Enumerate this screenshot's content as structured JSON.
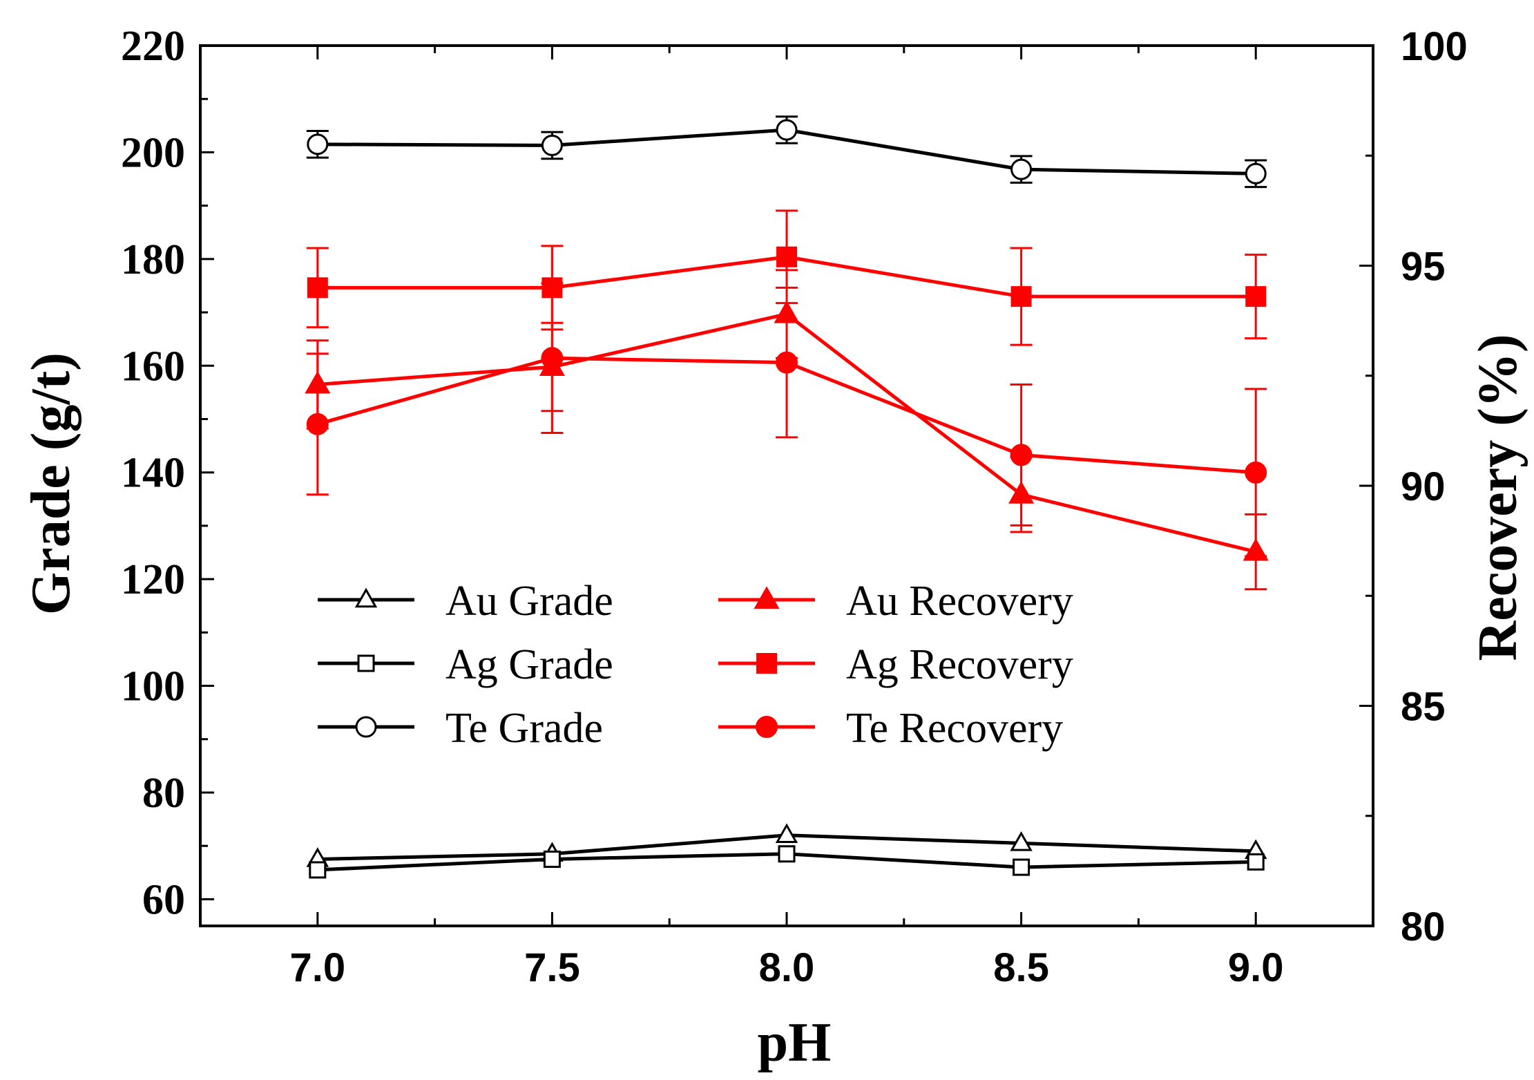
{
  "chart_data": {
    "type": "line",
    "x": [
      7.0,
      7.5,
      8.0,
      8.5,
      9.0
    ],
    "x_tick_labels": [
      "7.0",
      "7.5",
      "8.0",
      "8.5",
      "9.0"
    ],
    "xlabel": "pH",
    "xlim": [
      6.75,
      9.25
    ],
    "ylabel_left": "Grade (g/t)",
    "ylim_left": [
      55,
      220
    ],
    "y_ticks_left": [
      "60",
      "80",
      "100",
      "120",
      "140",
      "160",
      "180",
      "200",
      "220"
    ],
    "ylabel_right": "Recovery (%)",
    "ylim_right": [
      80,
      100
    ],
    "y_ticks_right": [
      "80",
      "85",
      "90",
      "95",
      "100"
    ],
    "series": [
      {
        "name": "Au Grade",
        "axis": "left",
        "color": "#000000",
        "marker": "triangle-open",
        "values": [
          67.5,
          68.5,
          72,
          70.5,
          69
        ]
      },
      {
        "name": "Ag Grade",
        "axis": "left",
        "color": "#000000",
        "marker": "square-open",
        "values": [
          65.5,
          67.5,
          68.5,
          66,
          67
        ]
      },
      {
        "name": "Te Grade",
        "axis": "left",
        "color": "#000000",
        "marker": "circle-open",
        "values": [
          201.5,
          201.3,
          204.2,
          196.8,
          196
        ],
        "errors": [
          2.5,
          2.5,
          2.5,
          2.5,
          2.5
        ]
      },
      {
        "name": "Au Recovery",
        "axis": "right",
        "color": "#ff0000",
        "marker": "triangle-filled",
        "values": [
          92.3,
          92.7,
          93.9,
          89.8,
          88.5
        ],
        "errors": [
          1.0,
          1.0,
          1.0,
          0.85,
          0.85
        ]
      },
      {
        "name": "Ag Recovery",
        "axis": "right",
        "color": "#ff0000",
        "marker": "square-filled",
        "values": [
          94.5,
          94.5,
          95.2,
          94.3,
          94.3
        ],
        "errors": [
          0.9,
          0.95,
          1.05,
          1.1,
          0.95
        ]
      },
      {
        "name": "Te Recovery",
        "axis": "right",
        "color": "#ff0000",
        "marker": "circle-filled",
        "values": [
          91.4,
          92.9,
          92.8,
          90.7,
          90.3
        ],
        "errors": [
          1.6,
          1.7,
          1.7,
          1.6,
          1.9
        ]
      }
    ],
    "legend_position": "lower-left-center",
    "grid": false
  }
}
